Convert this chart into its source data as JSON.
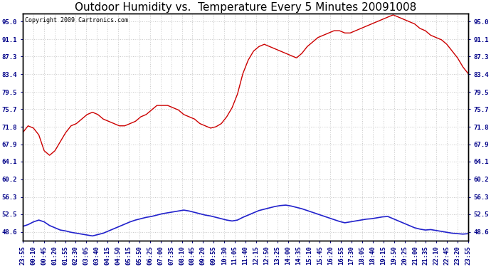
{
  "title": "Outdoor Humidity vs.  Temperature Every 5 Minutes 20091008",
  "copyright_text": "Copyright 2009 Cartronics.com",
  "yticks": [
    48.6,
    52.5,
    56.3,
    60.2,
    64.1,
    67.9,
    71.8,
    75.7,
    79.5,
    83.4,
    87.3,
    91.1,
    95.0
  ],
  "ymin": 46.7,
  "ymax": 96.8,
  "bg_color": "#ffffff",
  "grid_color": "#c8c8c8",
  "line_color_red": "#cc0000",
  "line_color_blue": "#2222cc",
  "title_fontsize": 11,
  "tick_label_fontsize": 6.5,
  "copyright_fontsize": 6,
  "xtick_labels": [
    "23:55",
    "00:10",
    "00:45",
    "01:20",
    "01:55",
    "02:30",
    "03:05",
    "03:40",
    "04:15",
    "04:50",
    "05:15",
    "05:50",
    "06:25",
    "07:00",
    "07:35",
    "08:10",
    "08:45",
    "09:20",
    "09:55",
    "10:30",
    "11:05",
    "11:40",
    "12:15",
    "12:50",
    "13:25",
    "14:00",
    "14:35",
    "15:10",
    "15:45",
    "16:20",
    "16:55",
    "17:30",
    "18:05",
    "18:40",
    "19:15",
    "19:50",
    "20:25",
    "21:00",
    "21:35",
    "22:10",
    "22:45",
    "23:20",
    "23:55"
  ],
  "humidity_data": [
    70.5,
    72.0,
    71.5,
    70.0,
    66.5,
    65.5,
    66.5,
    68.5,
    70.5,
    72.0,
    72.5,
    73.5,
    74.5,
    75.0,
    74.5,
    73.5,
    73.0,
    72.5,
    72.0,
    72.0,
    72.5,
    73.0,
    74.0,
    74.5,
    75.5,
    76.5,
    76.5,
    76.5,
    76.0,
    75.5,
    74.5,
    74.0,
    73.5,
    72.5,
    72.0,
    71.5,
    71.8,
    72.5,
    74.0,
    76.0,
    79.0,
    83.5,
    86.5,
    88.5,
    89.5,
    90.0,
    89.5,
    89.0,
    88.5,
    88.0,
    87.5,
    87.0,
    88.0,
    89.5,
    90.5,
    91.5,
    92.0,
    92.5,
    93.0,
    93.0,
    92.5,
    92.5,
    93.0,
    93.5,
    94.0,
    94.5,
    95.0,
    95.5,
    96.0,
    96.5,
    96.0,
    95.5,
    95.0,
    94.5,
    93.5,
    93.0,
    92.0,
    91.5,
    91.0,
    90.0,
    88.5,
    87.0,
    85.0,
    83.5
  ],
  "temperature_data": [
    49.8,
    50.2,
    50.8,
    51.2,
    50.8,
    50.0,
    49.5,
    49.0,
    48.8,
    48.5,
    48.3,
    48.1,
    47.9,
    47.7,
    48.0,
    48.3,
    48.8,
    49.3,
    49.8,
    50.3,
    50.8,
    51.2,
    51.5,
    51.8,
    52.0,
    52.3,
    52.6,
    52.8,
    53.0,
    53.2,
    53.4,
    53.2,
    52.9,
    52.6,
    52.3,
    52.1,
    51.8,
    51.5,
    51.2,
    51.0,
    51.2,
    51.8,
    52.3,
    52.8,
    53.3,
    53.6,
    53.9,
    54.2,
    54.4,
    54.5,
    54.3,
    54.0,
    53.7,
    53.3,
    52.9,
    52.5,
    52.1,
    51.7,
    51.3,
    50.9,
    50.6,
    50.8,
    51.0,
    51.2,
    51.4,
    51.5,
    51.7,
    51.9,
    52.0,
    51.5,
    51.0,
    50.5,
    50.0,
    49.5,
    49.2,
    49.0,
    49.1,
    48.9,
    48.7,
    48.5,
    48.3,
    48.2,
    48.1,
    48.2
  ]
}
